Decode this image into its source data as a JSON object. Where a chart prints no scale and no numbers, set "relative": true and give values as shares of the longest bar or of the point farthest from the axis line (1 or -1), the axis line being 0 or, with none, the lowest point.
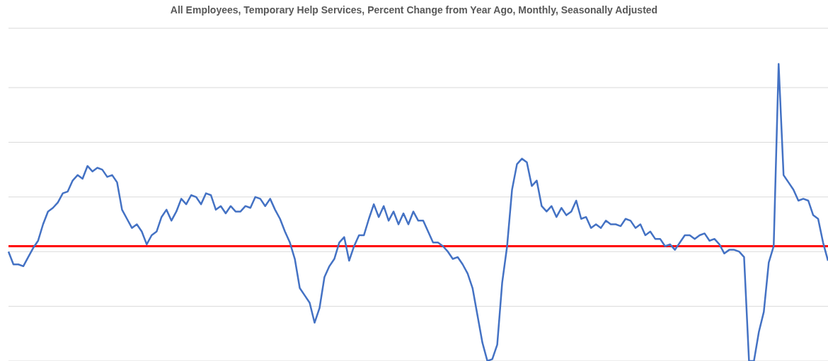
{
  "chart_data": {
    "type": "line",
    "title": "All Employees, Temporary Help Services, Percent Change from Year Ago, Monthly, Seasonally Adjusted",
    "relative": true,
    "grid": "y",
    "marker": "none",
    "line_style": "solid",
    "categories": [
      null,
      null,
      null,
      null,
      null,
      null,
      null,
      null,
      null,
      null,
      null,
      null,
      null,
      null,
      null,
      null,
      null,
      null,
      null,
      null,
      null,
      null,
      null,
      null,
      null,
      null,
      null,
      null,
      null,
      null,
      null,
      null,
      null,
      null,
      null,
      null,
      null,
      null,
      null,
      null,
      null,
      null,
      null,
      null,
      null,
      null,
      null,
      null,
      null,
      null,
      null,
      null,
      null,
      null,
      null,
      null,
      null,
      null,
      null,
      null,
      null,
      null,
      null,
      null,
      null,
      null,
      null,
      null,
      null,
      null,
      null,
      null,
      null,
      null,
      null,
      null,
      null,
      null,
      null,
      null,
      null,
      null,
      null,
      null,
      null,
      null,
      null,
      null,
      null,
      null,
      null,
      null,
      null,
      null,
      null,
      null,
      null,
      null,
      null,
      null,
      null,
      null,
      null,
      null,
      null,
      null,
      null,
      null,
      null,
      null,
      null,
      null,
      null,
      null,
      null,
      null,
      null,
      null,
      null,
      null,
      null,
      null,
      null,
      null,
      null,
      null,
      null,
      null,
      null,
      null,
      null,
      null,
      null,
      null,
      null,
      null,
      null,
      null,
      null,
      null,
      null,
      null,
      null,
      null,
      null,
      null,
      null,
      null,
      null,
      null,
      null,
      null,
      null,
      null,
      null,
      null,
      null,
      null,
      null,
      null,
      null,
      null,
      null,
      null,
      null,
      null,
      null
    ],
    "series": [
      {
        "color": "#4472c4",
        "values": [
          -0.03,
          -0.1,
          -0.1,
          -0.11,
          -0.06,
          -0.01,
          0.03,
          0.12,
          0.19,
          0.21,
          0.24,
          0.29,
          0.3,
          0.36,
          0.39,
          0.37,
          0.44,
          0.41,
          0.43,
          0.42,
          0.38,
          0.39,
          0.35,
          0.2,
          0.15,
          0.1,
          0.12,
          0.08,
          0.01,
          0.06,
          0.08,
          0.16,
          0.2,
          0.14,
          0.19,
          0.26,
          0.23,
          0.28,
          0.27,
          0.23,
          0.29,
          0.28,
          0.2,
          0.22,
          0.18,
          0.22,
          0.19,
          0.19,
          0.22,
          0.21,
          0.27,
          0.26,
          0.22,
          0.26,
          0.2,
          0.15,
          0.08,
          0.02,
          -0.07,
          -0.23,
          -0.27,
          -0.31,
          -0.42,
          -0.34,
          -0.17,
          -0.11,
          -0.07,
          0.02,
          0.05,
          -0.08,
          0.0,
          0.06,
          0.06,
          0.15,
          0.23,
          0.16,
          0.22,
          0.14,
          0.19,
          0.12,
          0.18,
          0.12,
          0.19,
          0.14,
          0.14,
          0.08,
          0.02,
          0.02,
          0.0,
          -0.03,
          -0.07,
          -0.06,
          -0.1,
          -0.15,
          -0.23,
          -0.38,
          -0.53,
          -0.63,
          -0.62,
          -0.54,
          -0.2,
          0.0,
          0.31,
          0.45,
          0.48,
          0.46,
          0.33,
          0.36,
          0.22,
          0.19,
          0.22,
          0.16,
          0.21,
          0.17,
          0.19,
          0.25,
          0.15,
          0.16,
          0.1,
          0.12,
          0.1,
          0.14,
          0.12,
          0.12,
          0.11,
          0.15,
          0.14,
          0.1,
          0.12,
          0.06,
          0.08,
          0.04,
          0.04,
          0.0,
          0.01,
          -0.02,
          0.02,
          0.06,
          0.06,
          0.04,
          0.06,
          0.07,
          0.03,
          0.04,
          0.01,
          -0.04,
          -0.02,
          -0.02,
          -0.03,
          -0.06,
          -0.63,
          -0.63,
          -0.47,
          -0.36,
          -0.09,
          0.0,
          1.0,
          0.39,
          0.35,
          0.31,
          0.25,
          0.26,
          0.25,
          0.17,
          0.15,
          0.02,
          -0.08
        ]
      }
    ],
    "ref_lines": [
      {
        "axis": "y",
        "value": 0,
        "color": "#ff0000"
      }
    ]
  }
}
